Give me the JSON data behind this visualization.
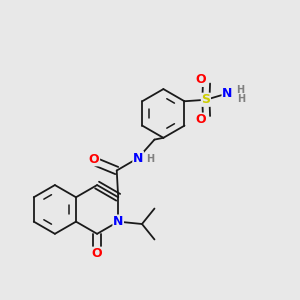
{
  "background_color": "#e8e8e8",
  "bond_color": "#1a1a1a",
  "atom_colors": {
    "O": "#ff0000",
    "N": "#0000ff",
    "S": "#cccc00",
    "H": "#808080"
  },
  "lw": 1.3,
  "figsize": [
    3.0,
    3.0
  ],
  "dpi": 100
}
